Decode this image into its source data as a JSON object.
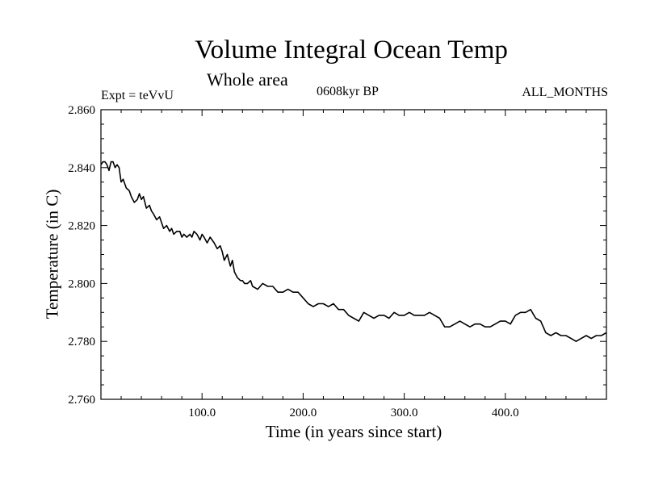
{
  "chart_data": {
    "type": "line",
    "title": "Volume Integral Ocean Temp",
    "subtitle": "Whole area",
    "annotations": {
      "experiment": "Expt = teVvU",
      "period": "0608kyr BP",
      "months": "ALL_MONTHS"
    },
    "xlabel": "Time (in years since start)",
    "ylabel": "Temperature (in C)",
    "xlim": [
      0,
      500
    ],
    "ylim": [
      2.76,
      2.86
    ],
    "x_ticks": [
      {
        "value": 100,
        "label": "100.0"
      },
      {
        "value": 200,
        "label": "200.0"
      },
      {
        "value": 300,
        "label": "300.0"
      },
      {
        "value": 400,
        "label": "400.0"
      }
    ],
    "y_ticks": [
      {
        "value": 2.76,
        "label": "2.760"
      },
      {
        "value": 2.78,
        "label": "2.780"
      },
      {
        "value": 2.8,
        "label": "2.800"
      },
      {
        "value": 2.82,
        "label": "2.820"
      },
      {
        "value": 2.84,
        "label": "2.840"
      },
      {
        "value": 2.86,
        "label": "2.860"
      }
    ],
    "grid": false,
    "line_color": "#000000",
    "series": [
      {
        "x": [
          0,
          2,
          4,
          6,
          8,
          10,
          12,
          14,
          16,
          18,
          20,
          22,
          25,
          28,
          30,
          33,
          36,
          38,
          40,
          42,
          45,
          48,
          50,
          52,
          55,
          58,
          60,
          62,
          65,
          68,
          70,
          72,
          75,
          78,
          80,
          82,
          85,
          88,
          90,
          92,
          95,
          98,
          100,
          102,
          105,
          108,
          110,
          112,
          115,
          118,
          120,
          122,
          125,
          128,
          130,
          132,
          135,
          138,
          140,
          142,
          145,
          148,
          150,
          155,
          160,
          165,
          170,
          175,
          180,
          185,
          190,
          195,
          200,
          205,
          210,
          215,
          220,
          225,
          230,
          235,
          240,
          245,
          250,
          255,
          260,
          265,
          270,
          275,
          280,
          285,
          290,
          295,
          300,
          305,
          310,
          315,
          320,
          325,
          330,
          335,
          340,
          345,
          350,
          355,
          360,
          365,
          370,
          375,
          380,
          385,
          390,
          395,
          400,
          405,
          410,
          415,
          420,
          425,
          430,
          435,
          440,
          445,
          450,
          455,
          460,
          465,
          470,
          475,
          480,
          485,
          490,
          495,
          500
        ],
        "y": [
          2.841,
          2.842,
          2.842,
          2.841,
          2.839,
          2.842,
          2.842,
          2.84,
          2.841,
          2.84,
          2.835,
          2.836,
          2.833,
          2.832,
          2.83,
          2.828,
          2.829,
          2.831,
          2.829,
          2.83,
          2.826,
          2.827,
          2.825,
          2.824,
          2.822,
          2.823,
          2.821,
          2.819,
          2.82,
          2.818,
          2.819,
          2.817,
          2.818,
          2.818,
          2.816,
          2.817,
          2.816,
          2.817,
          2.816,
          2.818,
          2.817,
          2.815,
          2.817,
          2.816,
          2.814,
          2.816,
          2.815,
          2.814,
          2.812,
          2.813,
          2.811,
          2.808,
          2.81,
          2.806,
          2.808,
          2.804,
          2.802,
          2.801,
          2.801,
          2.8,
          2.8,
          2.801,
          2.799,
          2.798,
          2.8,
          2.799,
          2.799,
          2.797,
          2.797,
          2.798,
          2.797,
          2.797,
          2.795,
          2.793,
          2.792,
          2.793,
          2.793,
          2.792,
          2.793,
          2.791,
          2.791,
          2.789,
          2.788,
          2.787,
          2.79,
          2.789,
          2.788,
          2.789,
          2.789,
          2.788,
          2.79,
          2.789,
          2.789,
          2.79,
          2.789,
          2.789,
          2.789,
          2.79,
          2.789,
          2.788,
          2.785,
          2.785,
          2.786,
          2.787,
          2.786,
          2.785,
          2.786,
          2.786,
          2.785,
          2.785,
          2.786,
          2.787,
          2.787,
          2.786,
          2.789,
          2.79,
          2.79,
          2.791,
          2.788,
          2.787,
          2.783,
          2.782,
          2.783,
          2.782,
          2.782,
          2.781,
          2.78,
          2.781,
          2.782,
          2.781,
          2.782,
          2.782,
          2.783
        ]
      }
    ]
  }
}
